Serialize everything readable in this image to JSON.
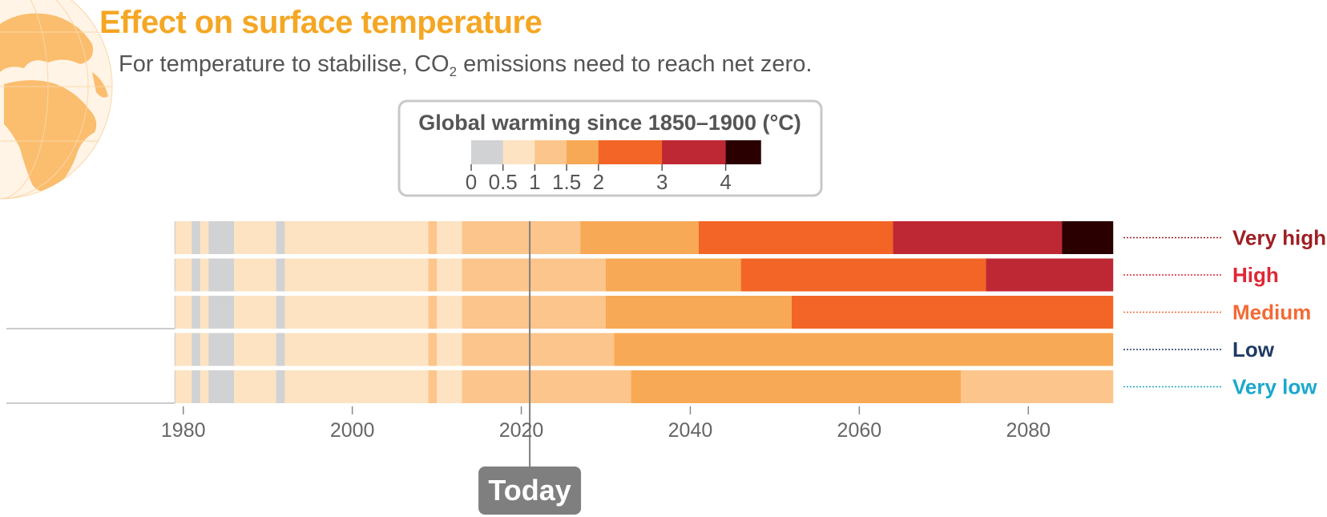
{
  "header": {
    "title": "Effect on surface temperature",
    "subtitle_pre": "For temperature to stabilise, CO",
    "subtitle_sub": "2",
    "subtitle_post": " emissions need to reach net zero."
  },
  "today_label": "Today",
  "colors": {
    "scale": [
      "#d1d2d4",
      "#fde3c2",
      "#fbc58b",
      "#f8a955",
      "#f26526",
      "#be2834",
      "#2a0000"
    ],
    "accent_title": "#f5a623",
    "text_gray": "#555555",
    "today_box": "#7f7f7f"
  },
  "chart_data": {
    "type": "heatmap",
    "legend": {
      "title": "Global warming since 1850–1900 (°C)",
      "thresholds": [
        0,
        0.5,
        1,
        1.5,
        2,
        3,
        4,
        4.55
      ],
      "tick_values": [
        0,
        0.5,
        1,
        1.5,
        2,
        3,
        4
      ],
      "tick_labels": [
        "0",
        "0.5",
        "1",
        "1.5",
        "2",
        "3",
        "4"
      ]
    },
    "x_ticks": [
      1980,
      2000,
      2020,
      2040,
      2060,
      2080
    ],
    "xlim": [
      1969.5,
      2090.5
    ],
    "data_start": 1979,
    "today_year": 2021,
    "historical_segments": [
      {
        "start": 1979,
        "end": 1981,
        "cls": 1
      },
      {
        "start": 1981,
        "end": 1982,
        "cls": 0
      },
      {
        "start": 1982,
        "end": 1983,
        "cls": 1
      },
      {
        "start": 1983,
        "end": 1986,
        "cls": 0
      },
      {
        "start": 1986,
        "end": 1991,
        "cls": 1
      },
      {
        "start": 1991,
        "end": 1992,
        "cls": 0
      },
      {
        "start": 1992,
        "end": 2009,
        "cls": 1
      },
      {
        "start": 2009,
        "end": 2010,
        "cls": 2
      },
      {
        "start": 2010,
        "end": 2013,
        "cls": 1
      },
      {
        "start": 2013,
        "end": 2021,
        "cls": 2
      }
    ],
    "series": [
      {
        "name": "Very high",
        "color": "#9e1f23",
        "line_color": "#9e1f23",
        "segments": [
          {
            "start": 2021,
            "end": 2027,
            "cls": 2
          },
          {
            "start": 2027,
            "end": 2041,
            "cls": 3
          },
          {
            "start": 2041,
            "end": 2064,
            "cls": 4
          },
          {
            "start": 2064,
            "end": 2084,
            "cls": 5
          },
          {
            "start": 2084,
            "end": 2090,
            "cls": 6
          }
        ]
      },
      {
        "name": "High",
        "color": "#e02735",
        "line_color": "#e02735",
        "segments": [
          {
            "start": 2021,
            "end": 2030,
            "cls": 2
          },
          {
            "start": 2030,
            "end": 2046,
            "cls": 3
          },
          {
            "start": 2046,
            "end": 2075,
            "cls": 4
          },
          {
            "start": 2075,
            "end": 2090,
            "cls": 5
          }
        ]
      },
      {
        "name": "Medium",
        "color": "#f26a35",
        "line_color": "#f26a35",
        "segments": [
          {
            "start": 2021,
            "end": 2030,
            "cls": 2
          },
          {
            "start": 2030,
            "end": 2052,
            "cls": 3
          },
          {
            "start": 2052,
            "end": 2090,
            "cls": 4
          }
        ]
      },
      {
        "name": "Low",
        "color": "#1f3b64",
        "line_color": "#1f3b64",
        "segments": [
          {
            "start": 2021,
            "end": 2031,
            "cls": 2
          },
          {
            "start": 2031,
            "end": 2090,
            "cls": 3
          }
        ]
      },
      {
        "name": "Very low",
        "color": "#1aa8cc",
        "line_color": "#1aa8cc",
        "segments": [
          {
            "start": 2021,
            "end": 2033,
            "cls": 2
          },
          {
            "start": 2033,
            "end": 2072,
            "cls": 3
          },
          {
            "start": 2072,
            "end": 2090,
            "cls": 2
          }
        ]
      }
    ]
  }
}
